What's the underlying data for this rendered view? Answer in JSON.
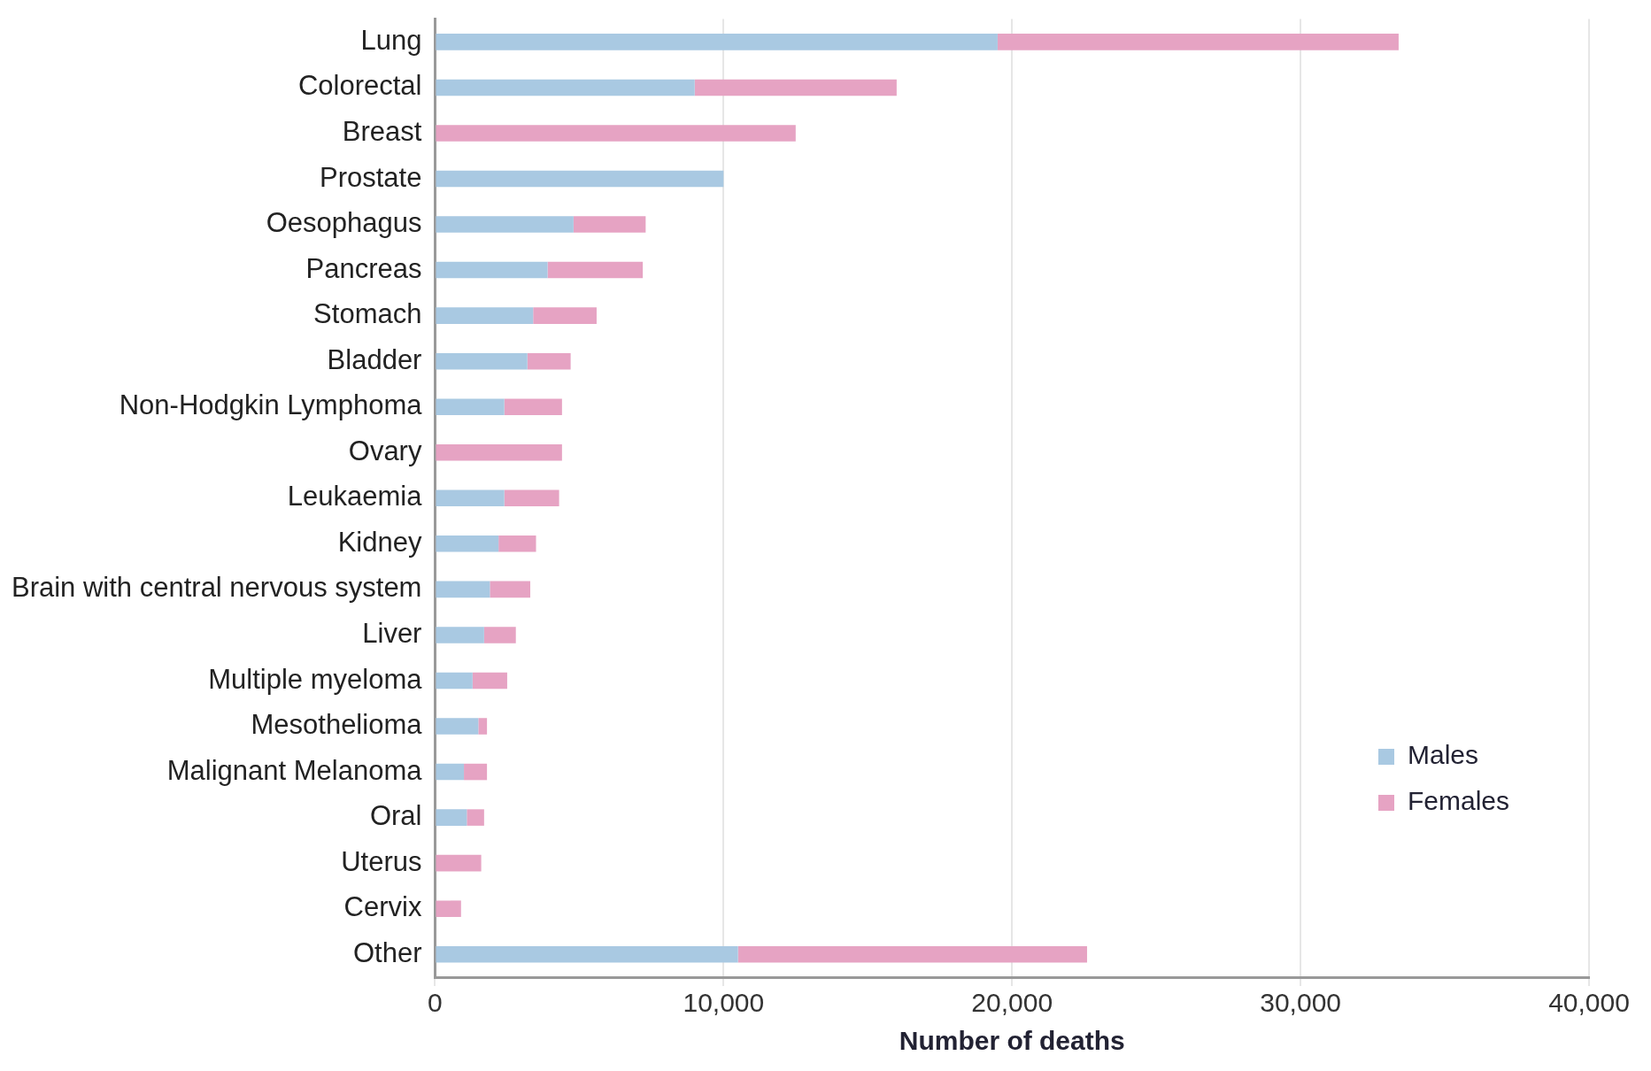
{
  "chart_data": {
    "type": "bar",
    "orientation": "horizontal",
    "stacked": true,
    "xlabel": "Number of deaths",
    "categories": [
      "Lung",
      "Colorectal",
      "Breast",
      "Prostate",
      "Oesophagus",
      "Pancreas",
      "Stomach",
      "Bladder",
      "Non-Hodgkin Lymphoma",
      "Ovary",
      "Leukaemia",
      "Kidney",
      "Brain with central nervous system",
      "Liver",
      "Multiple myeloma",
      "Mesothelioma",
      "Malignant Melanoma",
      "Oral",
      "Uterus",
      "Cervix",
      "Other"
    ],
    "series": [
      {
        "name": "Males",
        "color": "#a9c9e2",
        "values": [
          19500,
          9000,
          null,
          10000,
          4800,
          3900,
          3400,
          3200,
          2400,
          null,
          2400,
          2200,
          1900,
          1700,
          1300,
          1500,
          1000,
          1100,
          null,
          null,
          10500
        ]
      },
      {
        "name": "Females",
        "color": "#e6a3c3",
        "values": [
          13900,
          7000,
          12500,
          null,
          2500,
          3300,
          2200,
          1500,
          2000,
          4400,
          1900,
          1300,
          1400,
          1100,
          1200,
          300,
          800,
          600,
          1600,
          900,
          12100
        ]
      }
    ],
    "xlim": [
      0,
      40000
    ],
    "xticks": [
      {
        "value": 0,
        "label": "0"
      },
      {
        "value": 10000,
        "label": "10,000"
      },
      {
        "value": 20000,
        "label": "20,000"
      },
      {
        "value": 30000,
        "label": "30,000"
      },
      {
        "value": 40000,
        "label": "40,000"
      }
    ],
    "grid": "x",
    "legend": "bottom right"
  }
}
